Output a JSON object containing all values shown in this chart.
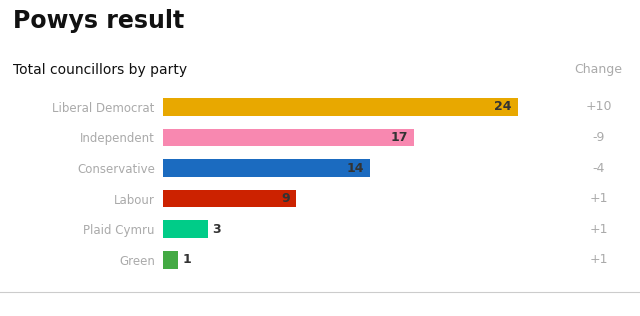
{
  "title": "Powys result",
  "subtitle": "Total councillors by party",
  "parties": [
    "Liberal Democrat",
    "Independent",
    "Conservative",
    "Labour",
    "Plaid Cymru",
    "Green"
  ],
  "values": [
    24,
    17,
    14,
    9,
    3,
    1
  ],
  "colors": [
    "#E8A800",
    "#F888B0",
    "#1B6BC0",
    "#CC2200",
    "#00CC88",
    "#44AA44"
  ],
  "changes": [
    "+10",
    "-9",
    "-4",
    "+1",
    "+1",
    "+1"
  ],
  "change_label": "Change",
  "background_color": "#ffffff",
  "bar_label_color_large": "#333333",
  "bar_label_color_small": "#333333",
  "party_label_color": "#aaaaaa",
  "change_color": "#aaaaaa",
  "title_color": "#111111",
  "subtitle_color": "#111111",
  "max_value": 26,
  "bbc_box_color": "#000000",
  "bbc_text_color": "#ffffff"
}
